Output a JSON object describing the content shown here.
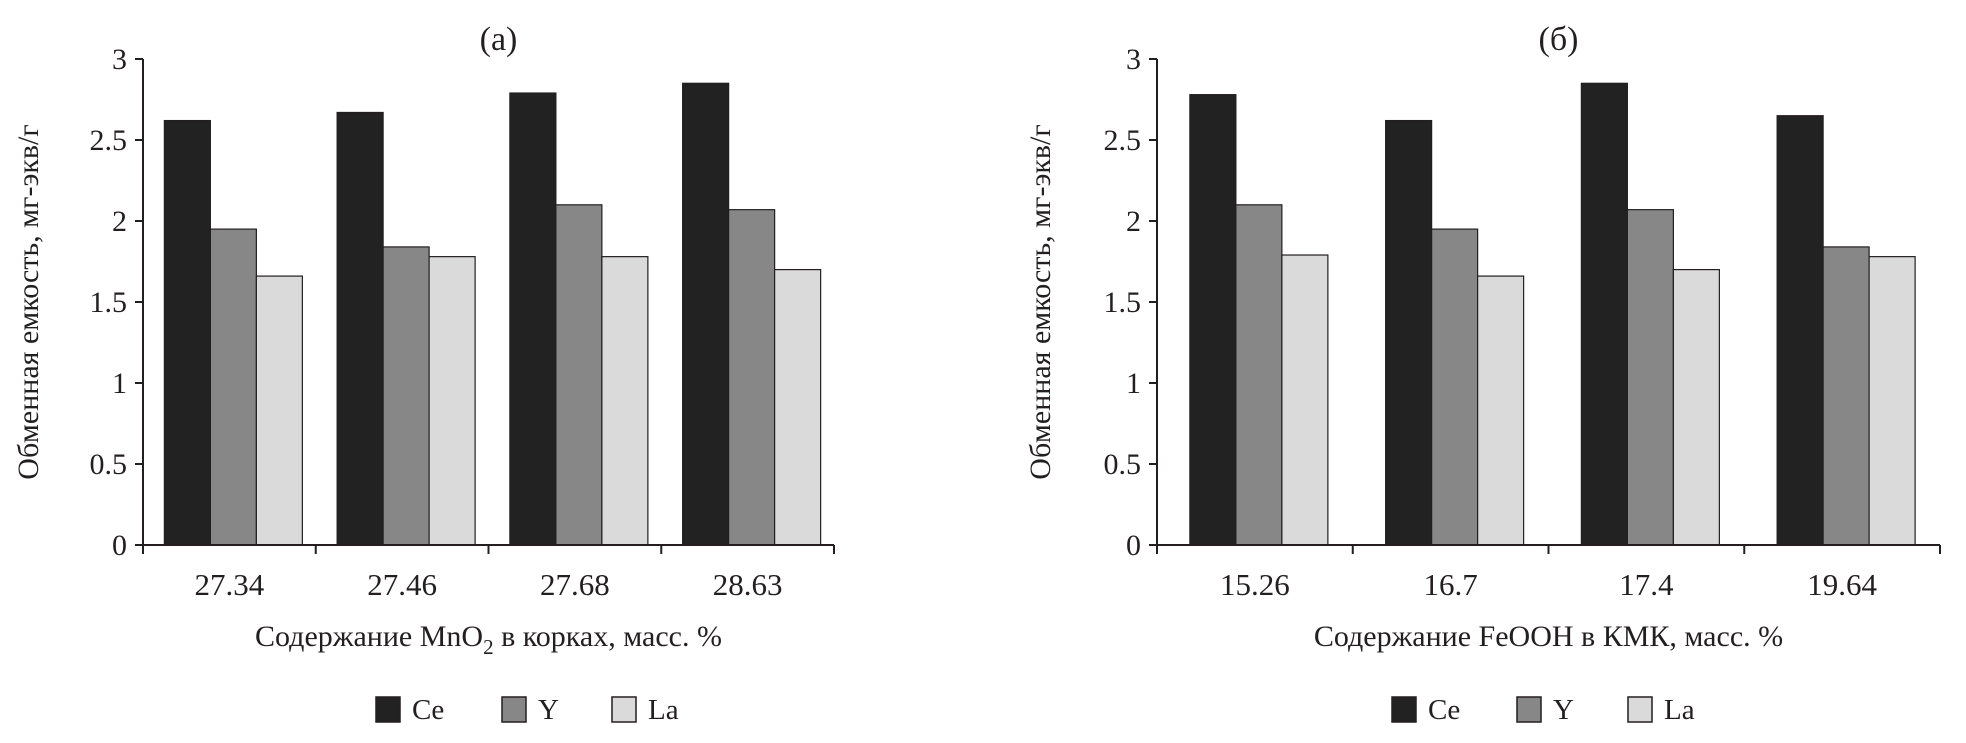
{
  "colors": {
    "Ce": "#222222",
    "Y": "#878787",
    "La": "#dadada",
    "axis": "#231f20"
  },
  "chart_data": [
    {
      "type": "bar",
      "title": "(а)",
      "categories": [
        "27.34",
        "27.46",
        "27.68",
        "28.63"
      ],
      "series": [
        {
          "name": "Ce",
          "values": [
            2.62,
            2.67,
            2.79,
            2.85
          ]
        },
        {
          "name": "Y",
          "values": [
            1.95,
            1.84,
            2.1,
            2.07
          ]
        },
        {
          "name": "La",
          "values": [
            1.66,
            1.78,
            1.78,
            1.7
          ]
        }
      ],
      "xlabel_pre": "Содержание MnO",
      "xlabel_sub": "2",
      "xlabel_post": " в корках, масс. %",
      "ylabel": "Обменная емкость, мг-экв/г",
      "ylim": [
        0,
        3
      ],
      "yticks": [
        "0",
        "0.5",
        "1",
        "1.5",
        "2",
        "2.5",
        "3"
      ],
      "grid": false,
      "legend": "bottom"
    },
    {
      "type": "bar",
      "title": "(б)",
      "categories": [
        "15.26",
        "16.7",
        "17.4",
        "19.64"
      ],
      "series": [
        {
          "name": "Ce",
          "values": [
            2.78,
            2.62,
            2.85,
            2.65
          ]
        },
        {
          "name": "Y",
          "values": [
            2.1,
            1.95,
            2.07,
            1.84
          ]
        },
        {
          "name": "La",
          "values": [
            1.79,
            1.66,
            1.7,
            1.78
          ]
        }
      ],
      "xlabel_pre": "Содержание FeOOH в КМК, масс. %",
      "xlabel_sub": "",
      "xlabel_post": "",
      "ylabel": "Обменная емкость, мг-экв/г",
      "ylim": [
        0,
        3
      ],
      "yticks": [
        "0",
        "0.5",
        "1",
        "1.5",
        "2",
        "2.5",
        "3"
      ],
      "grid": false,
      "legend": "bottom"
    }
  ]
}
